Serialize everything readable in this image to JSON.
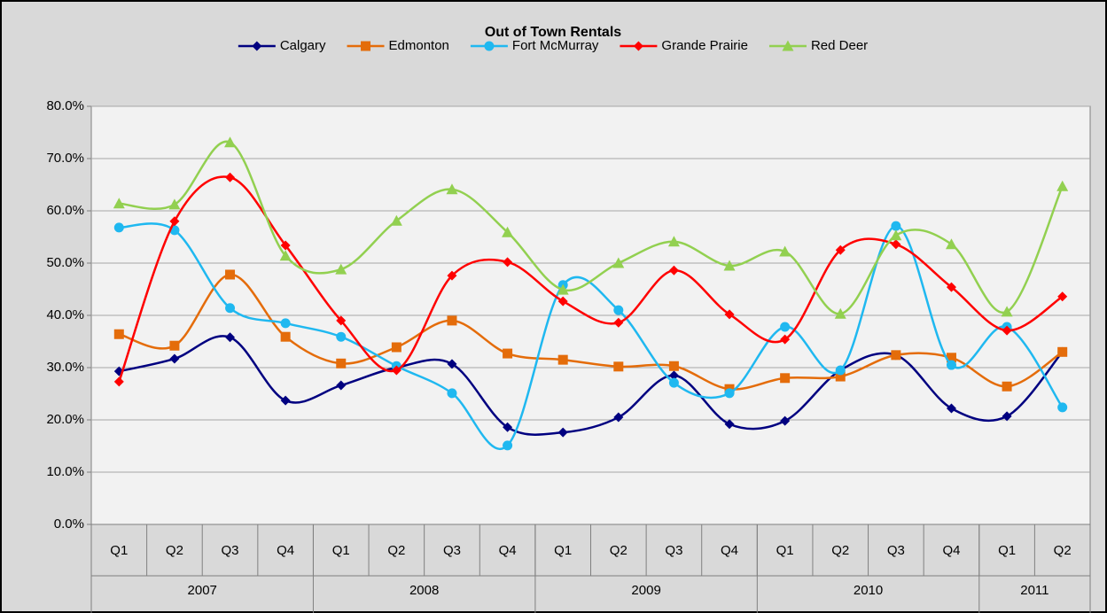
{
  "chart_data": {
    "type": "line",
    "title": "Out of Town Rentals",
    "smooth": true,
    "grid": true,
    "legend": "top",
    "categories": [
      "Q1",
      "Q2",
      "Q3",
      "Q4",
      "Q1",
      "Q2",
      "Q3",
      "Q4",
      "Q1",
      "Q2",
      "Q3",
      "Q4",
      "Q1",
      "Q2",
      "Q3",
      "Q4",
      "Q1",
      "Q2"
    ],
    "groups": [
      {
        "label": "2007",
        "count": 4
      },
      {
        "label": "2008",
        "count": 4
      },
      {
        "label": "2009",
        "count": 4
      },
      {
        "label": "2010",
        "count": 4
      },
      {
        "label": "2011",
        "count": 2
      }
    ],
    "ylim": [
      0,
      80
    ],
    "yticks": [
      {
        "value": 0,
        "label": "0.0%"
      },
      {
        "value": 10,
        "label": "10.0%"
      },
      {
        "value": 20,
        "label": "20.0%"
      },
      {
        "value": 30,
        "label": "30.0%"
      },
      {
        "value": 40,
        "label": "40.0%"
      },
      {
        "value": 50,
        "label": "50.0%"
      },
      {
        "value": 60,
        "label": "60.0%"
      },
      {
        "value": 70,
        "label": "70.0%"
      },
      {
        "value": 80,
        "label": "80.0%"
      }
    ],
    "series": [
      {
        "name": "Calgary",
        "color": "#000080",
        "marker": "diamond",
        "values": [
          29.3,
          31.7,
          35.8,
          23.7,
          26.6,
          30.0,
          30.7,
          18.6,
          17.6,
          20.5,
          28.5,
          19.2,
          19.8,
          29.5,
          32.4,
          22.2,
          20.7,
          33.0
        ]
      },
      {
        "name": "Edmonton",
        "color": "#e46c0a",
        "marker": "square",
        "values": [
          36.4,
          34.2,
          47.8,
          35.9,
          30.8,
          33.9,
          39.0,
          32.7,
          31.5,
          30.2,
          30.3,
          25.9,
          28.0,
          28.3,
          32.4,
          31.9,
          26.4,
          33.0
        ]
      },
      {
        "name": "Fort McMurray",
        "color": "#1fb8f0",
        "marker": "circle",
        "values": [
          56.8,
          56.3,
          41.4,
          38.5,
          35.9,
          30.3,
          25.1,
          15.1,
          45.8,
          41.0,
          27.1,
          25.1,
          37.8,
          29.5,
          57.1,
          30.5,
          37.8,
          22.4
        ]
      },
      {
        "name": "Grande Prairie",
        "color": "#ff0000",
        "marker": "diamond",
        "values": [
          27.3,
          58.0,
          66.4,
          53.4,
          39.0,
          29.5,
          47.6,
          50.2,
          42.7,
          38.6,
          48.6,
          40.2,
          35.4,
          52.5,
          53.6,
          45.4,
          37.1,
          43.6
        ]
      },
      {
        "name": "Red Deer",
        "color": "#92d050",
        "marker": "triangle",
        "values": [
          61.4,
          61.2,
          73.1,
          51.4,
          48.8,
          58.1,
          64.1,
          55.9,
          44.9,
          50.0,
          54.1,
          49.5,
          52.2,
          40.3,
          55.3,
          53.6,
          40.7,
          64.7
        ]
      }
    ]
  }
}
